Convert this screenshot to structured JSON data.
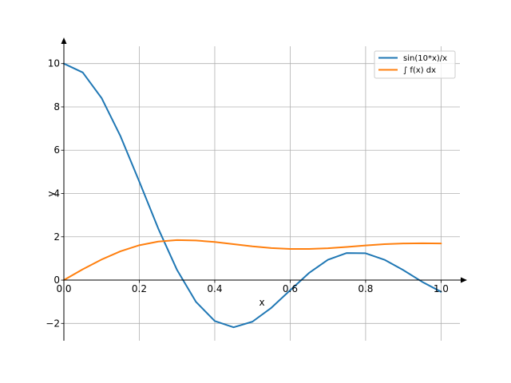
{
  "chart_data": {
    "type": "line",
    "title": "",
    "xlabel": "x",
    "ylabel": "y",
    "xlim": [
      0,
      1.05
    ],
    "ylim": [
      -2.8,
      10.8
    ],
    "grid": true,
    "legend_position": "top-right",
    "x_ticks": [
      {
        "value": 0.0,
        "label": "0.0"
      },
      {
        "value": 0.2,
        "label": "0.2"
      },
      {
        "value": 0.4,
        "label": "0.4"
      },
      {
        "value": 0.6,
        "label": "0.6"
      },
      {
        "value": 0.8,
        "label": "0.8"
      },
      {
        "value": 1.0,
        "label": "1.0"
      }
    ],
    "y_ticks": [
      {
        "value": -2,
        "label": "−2"
      },
      {
        "value": 0,
        "label": "0"
      },
      {
        "value": 2,
        "label": "2"
      },
      {
        "value": 4,
        "label": "4"
      },
      {
        "value": 6,
        "label": "6"
      },
      {
        "value": 8,
        "label": "8"
      },
      {
        "value": 10,
        "label": "10"
      }
    ],
    "series": [
      {
        "name": "sin(10*x)/x",
        "color": "#1f77b4",
        "x": [
          0.0,
          0.05,
          0.1,
          0.15,
          0.2,
          0.25,
          0.3,
          0.35,
          0.4,
          0.45,
          0.5,
          0.55,
          0.6,
          0.65,
          0.7,
          0.75,
          0.8,
          0.85,
          0.9,
          0.95,
          1.0
        ],
        "y": [
          10.0,
          9.59,
          8.41,
          6.65,
          4.55,
          2.39,
          0.47,
          -1.0,
          -1.89,
          -2.18,
          -1.92,
          -1.28,
          -0.47,
          0.33,
          0.94,
          1.25,
          1.24,
          0.94,
          0.46,
          -0.08,
          -0.54
        ]
      },
      {
        "name": "∫ f(x) dx",
        "color": "#ff7f0e",
        "x": [
          0.0,
          0.05,
          0.1,
          0.15,
          0.2,
          0.25,
          0.3,
          0.35,
          0.4,
          0.45,
          0.5,
          0.55,
          0.6,
          0.65,
          0.7,
          0.75,
          0.8,
          0.85,
          0.9,
          0.95,
          1.0
        ],
        "y": [
          0.0,
          0.5,
          0.95,
          1.33,
          1.61,
          1.78,
          1.85,
          1.83,
          1.76,
          1.66,
          1.56,
          1.48,
          1.44,
          1.44,
          1.47,
          1.53,
          1.6,
          1.66,
          1.69,
          1.7,
          1.69
        ]
      }
    ]
  }
}
